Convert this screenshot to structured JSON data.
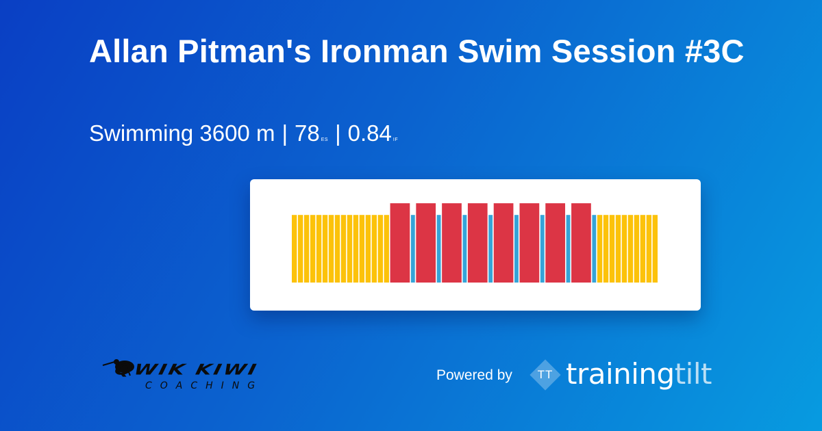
{
  "header": {
    "title": "Allan Pitman's Ironman Swim Session #3C",
    "sport": "Swimming 3600 m",
    "separator": "|",
    "es_value": "78",
    "es_label": "ES",
    "if_value": "0.84",
    "if_label": "IF"
  },
  "workout_graph": {
    "colors": {
      "easy": "#fcc20a",
      "recovery": "#35a4d8",
      "hard": "#dc3545",
      "background": "#ffffff"
    },
    "intervals": [
      {
        "zone": "easy",
        "level": 0.52
      },
      {
        "zone": "easy",
        "level": 0.52
      },
      {
        "zone": "easy",
        "level": 0.52
      },
      {
        "zone": "easy",
        "level": 0.52
      },
      {
        "zone": "easy",
        "level": 0.52
      },
      {
        "zone": "easy",
        "level": 0.52
      },
      {
        "zone": "easy",
        "level": 0.52
      },
      {
        "zone": "easy",
        "level": 0.52
      },
      {
        "zone": "easy",
        "level": 0.52
      },
      {
        "zone": "easy",
        "level": 0.52
      },
      {
        "zone": "easy",
        "level": 0.52
      },
      {
        "zone": "easy",
        "level": 0.52
      },
      {
        "zone": "easy",
        "level": 0.52
      },
      {
        "zone": "easy",
        "level": 0.52
      },
      {
        "zone": "easy",
        "level": 0.52
      },
      {
        "zone": "easy",
        "level": 0.52
      },
      {
        "zone": "hard",
        "level": 0.61
      },
      {
        "zone": "recovery",
        "level": 0.52
      },
      {
        "zone": "hard",
        "level": 0.61
      },
      {
        "zone": "recovery",
        "level": 0.52
      },
      {
        "zone": "hard",
        "level": 0.61
      },
      {
        "zone": "recovery",
        "level": 0.52
      },
      {
        "zone": "hard",
        "level": 0.61
      },
      {
        "zone": "recovery",
        "level": 0.52
      },
      {
        "zone": "hard",
        "level": 0.61
      },
      {
        "zone": "recovery",
        "level": 0.52
      },
      {
        "zone": "hard",
        "level": 0.61
      },
      {
        "zone": "recovery",
        "level": 0.52
      },
      {
        "zone": "hard",
        "level": 0.61
      },
      {
        "zone": "recovery",
        "level": 0.52
      },
      {
        "zone": "hard",
        "level": 0.61
      },
      {
        "zone": "recovery",
        "level": 0.52
      },
      {
        "zone": "easy",
        "level": 0.52
      },
      {
        "zone": "easy",
        "level": 0.52
      },
      {
        "zone": "easy",
        "level": 0.52
      },
      {
        "zone": "easy",
        "level": 0.52
      },
      {
        "zone": "easy",
        "level": 0.52
      },
      {
        "zone": "easy",
        "level": 0.52
      },
      {
        "zone": "easy",
        "level": 0.52
      },
      {
        "zone": "easy",
        "level": 0.52
      },
      {
        "zone": "easy",
        "level": 0.52
      },
      {
        "zone": "easy",
        "level": 0.52
      }
    ]
  },
  "coach_logo": {
    "name": "QWIK KIWI",
    "tagline": "COACHING",
    "icon": "kiwi-bird-icon"
  },
  "footer": {
    "powered_by": "Powered by",
    "brand_icon_text": "TT",
    "brand_part1": "training",
    "brand_part2": "tilt"
  }
}
